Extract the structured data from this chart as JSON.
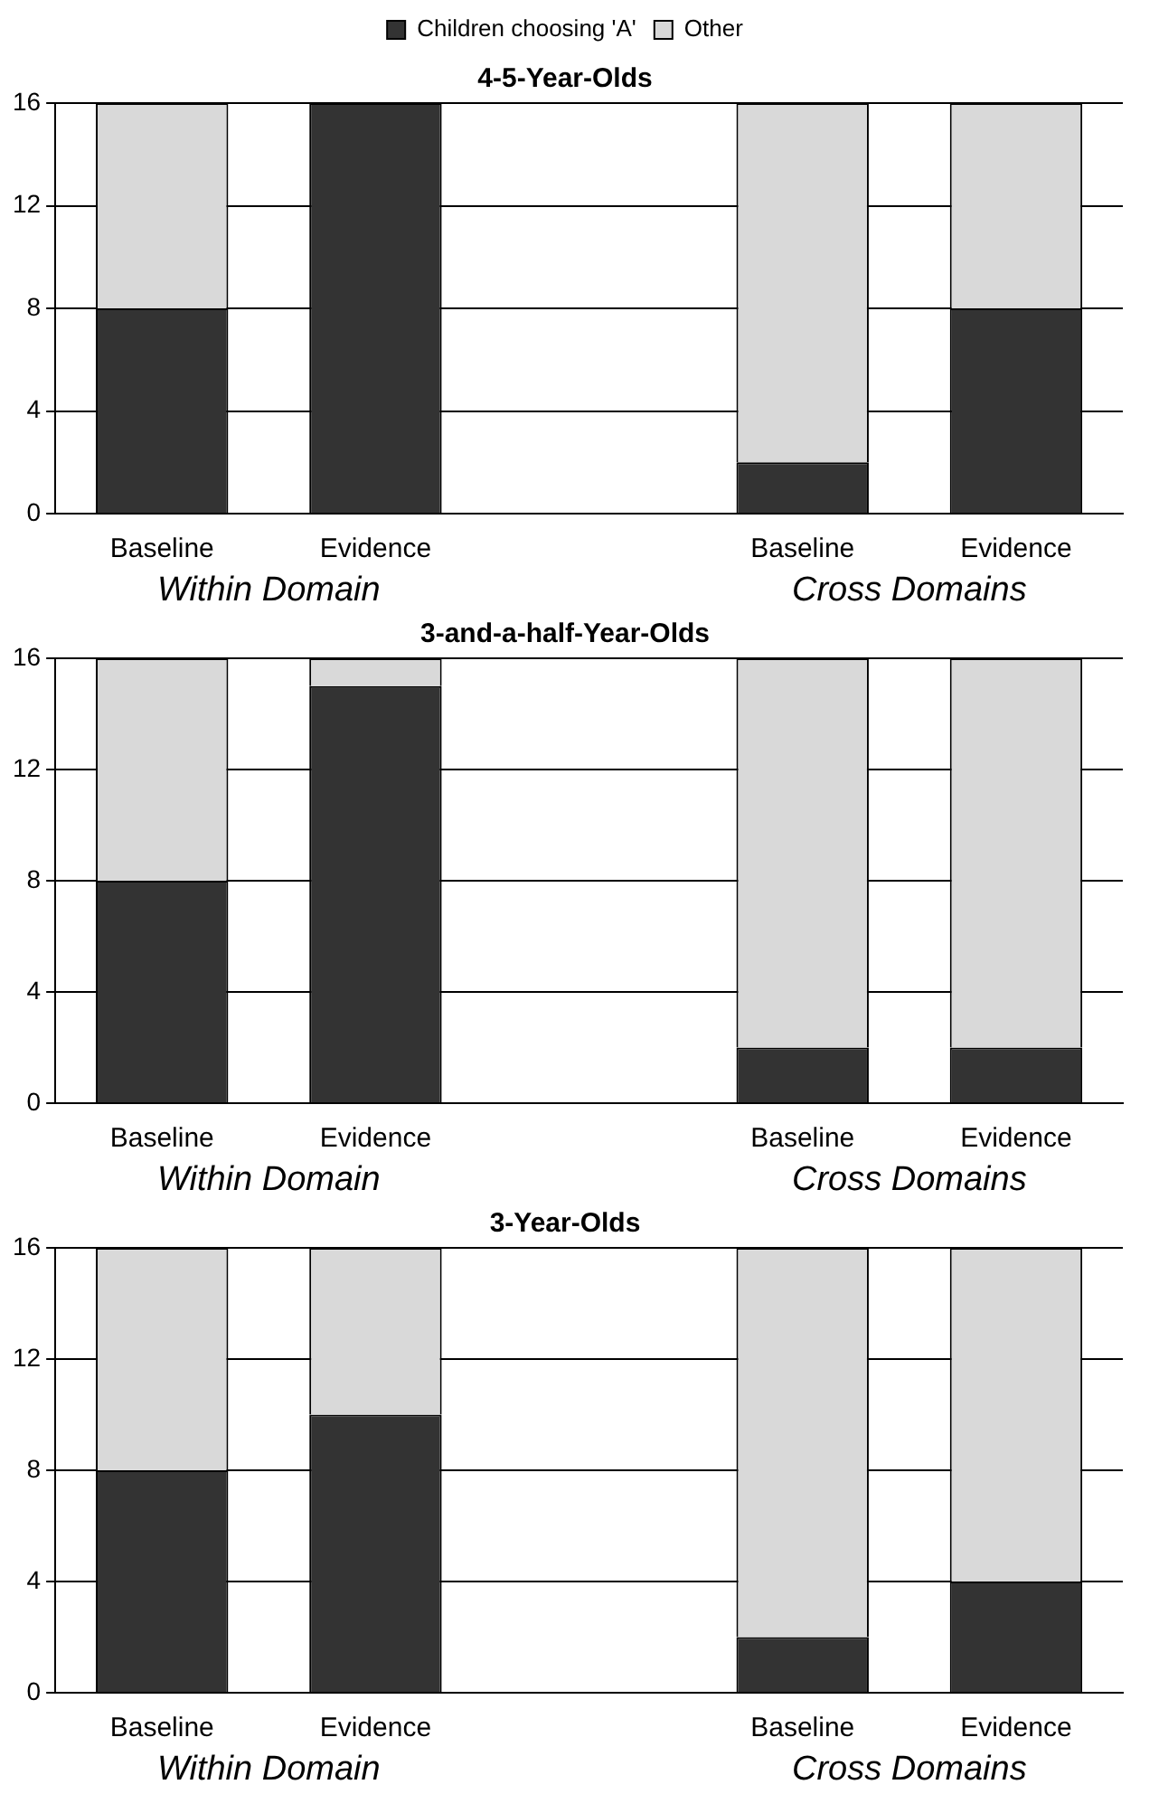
{
  "chart_data": [
    {
      "type": "bar",
      "title": "4-5-Year-Olds",
      "categories": [
        "Baseline",
        "Evidence",
        null,
        "Baseline",
        "Evidence"
      ],
      "stacked": true,
      "legend": "top",
      "grid": "y",
      "ylim": [
        0,
        16
      ],
      "yticks": [
        0,
        4,
        8,
        12,
        16
      ],
      "annotations": [
        "Within Domain",
        "Cross Domains"
      ],
      "series": [
        {
          "name": "Children choosing 'A'",
          "color": "#333333",
          "values": [
            8,
            16,
            null,
            2,
            8
          ]
        },
        {
          "name": "Other",
          "color": "#d9d9d9",
          "values": [
            8,
            0,
            null,
            14,
            8
          ]
        }
      ]
    },
    {
      "type": "bar",
      "title": "3-and-a-half-Year-Olds",
      "categories": [
        "Baseline",
        "Evidence",
        null,
        "Baseline",
        "Evidence"
      ],
      "stacked": true,
      "grid": "y",
      "ylim": [
        0,
        16
      ],
      "yticks": [
        0,
        4,
        8,
        12,
        16
      ],
      "annotations": [
        "Within Domain",
        "Cross Domains"
      ],
      "series": [
        {
          "color": "#333333",
          "values": [
            8,
            15,
            null,
            2,
            2
          ]
        },
        {
          "color": "#d9d9d9",
          "values": [
            8,
            1,
            null,
            14,
            14
          ]
        }
      ]
    },
    {
      "type": "bar",
      "title": "3-Year-Olds",
      "categories": [
        "Baseline",
        "Evidence",
        null,
        "Baseline",
        "Evidence"
      ],
      "stacked": true,
      "grid": "y",
      "ylim": [
        0,
        16
      ],
      "yticks": [
        0,
        4,
        8,
        12,
        16
      ],
      "annotations": [
        "Within Domain",
        "Cross Domains"
      ],
      "series": [
        {
          "color": "#333333",
          "values": [
            8,
            10,
            null,
            2,
            4
          ]
        },
        {
          "color": "#d9d9d9",
          "values": [
            8,
            6,
            null,
            14,
            12
          ]
        }
      ]
    }
  ]
}
